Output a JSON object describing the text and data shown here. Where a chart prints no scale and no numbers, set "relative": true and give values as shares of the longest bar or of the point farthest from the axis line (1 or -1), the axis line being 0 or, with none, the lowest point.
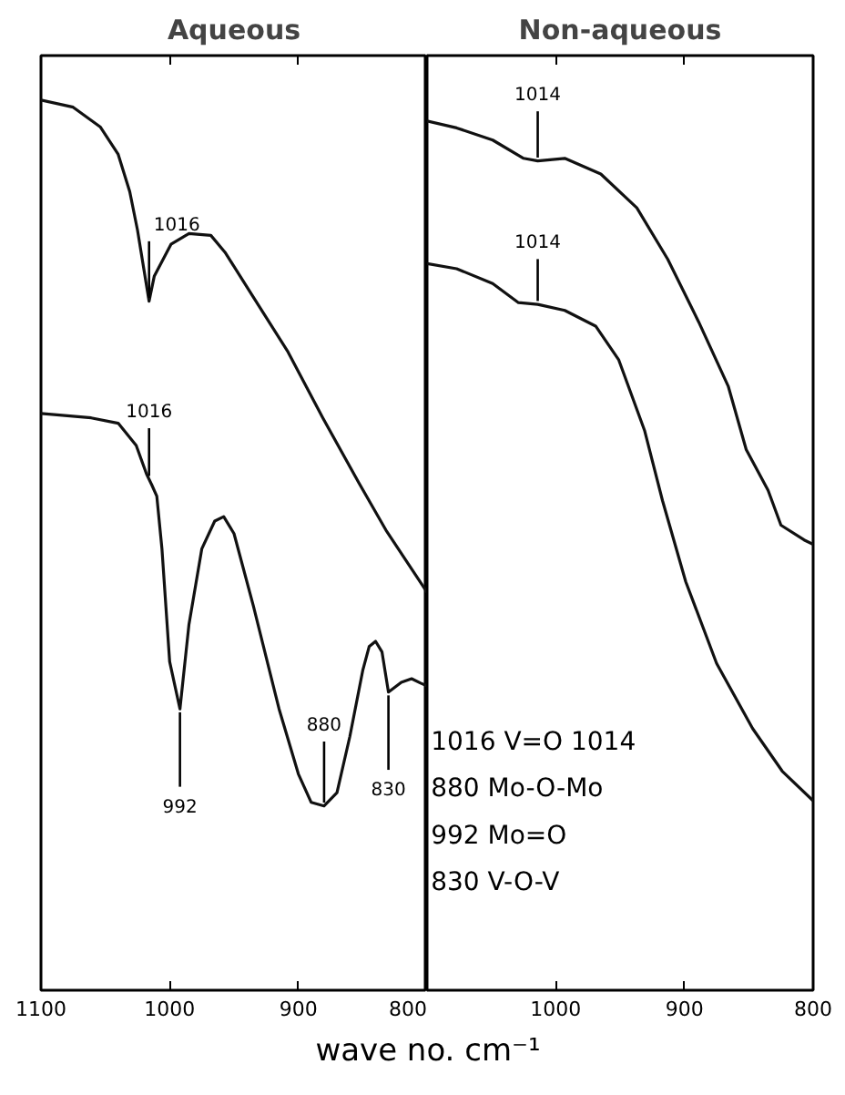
{
  "chart_data": [
    {
      "type": "line",
      "title": "Aqueous",
      "xlabel": "wave no. cm⁻¹",
      "relative": true,
      "xlim": [
        1100,
        800
      ],
      "xticks": [
        1100,
        1000,
        900,
        800
      ],
      "tick_labels": "x",
      "grid": false,
      "series": [
        {
          "color": "#111111",
          "x": [
            1100,
            1075,
            1054,
            1040,
            1031,
            1025,
            1016,
            1012,
            999,
            985,
            968,
            957,
            936,
            908,
            881,
            853,
            832,
            800
          ],
          "values": [
            1.0,
            0.992,
            0.97,
            0.939,
            0.897,
            0.854,
            0.774,
            0.802,
            0.838,
            0.85,
            0.848,
            0.829,
            0.781,
            0.717,
            0.643,
            0.57,
            0.517,
            0.447
          ]
        },
        {
          "color": "#111111",
          "x": [
            1100,
            1061,
            1040,
            1026,
            1018,
            1014,
            1010,
            1006,
            1000,
            992,
            985,
            975,
            965,
            958,
            950,
            935,
            915,
            900,
            890,
            880,
            870,
            860,
            850,
            845,
            840,
            835,
            830,
            820,
            812,
            805,
            800
          ],
          "values": [
            0.648,
            0.643,
            0.637,
            0.612,
            0.58,
            0.568,
            0.555,
            0.496,
            0.369,
            0.316,
            0.411,
            0.496,
            0.527,
            0.532,
            0.513,
            0.432,
            0.316,
            0.243,
            0.211,
            0.207,
            0.222,
            0.285,
            0.359,
            0.386,
            0.392,
            0.38,
            0.335,
            0.346,
            0.35,
            0.345,
            0.342
          ]
        }
      ],
      "annotations": [
        {
          "text": "1016",
          "x": 1016,
          "y": 0.774
        },
        {
          "text": "1016",
          "x": 1016,
          "y": 0.574
        },
        {
          "text": "992",
          "x": 992,
          "y": 0.316
        },
        {
          "text": "880",
          "x": 880,
          "y": 0.207
        },
        {
          "text": "830",
          "x": 830,
          "y": 0.335
        }
      ]
    },
    {
      "type": "line",
      "title": "Non-aqueous",
      "relative": true,
      "xlim": [
        1100,
        800
      ],
      "xticks": [
        1000,
        900,
        800
      ],
      "tick_labels": "x",
      "grid": false,
      "series": [
        {
          "color": "#111111",
          "x": [
            1100,
            1077,
            1049,
            1025,
            1014,
            993,
            965,
            937,
            913,
            889,
            866,
            852,
            835,
            825,
            807,
            800
          ],
          "values": [
            1.0,
            0.992,
            0.978,
            0.957,
            0.954,
            0.957,
            0.939,
            0.9,
            0.841,
            0.769,
            0.695,
            0.622,
            0.575,
            0.535,
            0.518,
            0.513
          ]
        },
        {
          "color": "#111111",
          "x": [
            1100,
            1077,
            1049,
            1029,
            1014,
            993,
            969,
            951,
            931,
            917,
            899,
            875,
            847,
            824,
            800
          ],
          "values": [
            0.836,
            0.83,
            0.813,
            0.791,
            0.789,
            0.782,
            0.764,
            0.725,
            0.644,
            0.563,
            0.47,
            0.376,
            0.301,
            0.252,
            0.218
          ]
        }
      ],
      "annotations": [
        {
          "text": "1014",
          "x": 1014,
          "y": 0.954
        },
        {
          "text": "1014",
          "x": 1014,
          "y": 0.789
        },
        "1016 V=O 1014",
        "880 Mo-O-Mo",
        "992 Mo=O",
        "830 V-O-V"
      ]
    }
  ]
}
